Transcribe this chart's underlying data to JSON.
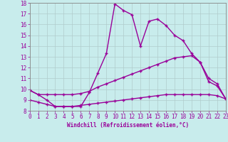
{
  "bg_color": "#c8ecec",
  "line_color": "#990099",
  "grid_color": "#b0cccc",
  "xlim": [
    0,
    23
  ],
  "ylim": [
    8,
    18
  ],
  "xticks": [
    0,
    1,
    2,
    3,
    4,
    5,
    6,
    7,
    8,
    9,
    10,
    11,
    12,
    13,
    14,
    15,
    16,
    17,
    18,
    19,
    20,
    21,
    22,
    23
  ],
  "yticks": [
    8,
    9,
    10,
    11,
    12,
    13,
    14,
    15,
    16,
    17,
    18
  ],
  "xlabel": "Windchill (Refroidissement éolien,°C)",
  "line1_x": [
    0,
    1,
    2,
    3,
    4,
    5,
    6,
    7,
    8,
    9,
    10,
    11,
    12,
    13,
    14,
    15,
    16,
    17,
    18,
    19,
    20,
    21,
    22,
    23
  ],
  "line1_y": [
    9.9,
    9.5,
    9.0,
    8.4,
    8.4,
    8.4,
    8.4,
    9.7,
    11.5,
    13.3,
    17.9,
    17.3,
    16.9,
    14.0,
    16.3,
    16.5,
    15.9,
    15.0,
    14.5,
    13.3,
    12.5,
    10.7,
    10.3,
    9.1
  ],
  "line2_x": [
    0,
    1,
    2,
    3,
    4,
    5,
    6,
    7,
    8,
    9,
    10,
    11,
    12,
    13,
    14,
    15,
    16,
    17,
    18,
    19,
    20,
    21,
    22,
    23
  ],
  "line2_y": [
    9.9,
    9.5,
    9.5,
    9.5,
    9.5,
    9.5,
    9.6,
    9.8,
    10.2,
    10.5,
    10.8,
    11.1,
    11.4,
    11.7,
    12.0,
    12.3,
    12.6,
    12.9,
    13.0,
    13.1,
    12.5,
    11.0,
    10.5,
    9.1
  ],
  "line3_x": [
    0,
    1,
    2,
    3,
    4,
    5,
    6,
    7,
    8,
    9,
    10,
    11,
    12,
    13,
    14,
    15,
    16,
    17,
    18,
    19,
    20,
    21,
    22,
    23
  ],
  "line3_y": [
    9.0,
    8.8,
    8.6,
    8.4,
    8.4,
    8.4,
    8.5,
    8.6,
    8.7,
    8.8,
    8.9,
    9.0,
    9.1,
    9.2,
    9.3,
    9.4,
    9.5,
    9.5,
    9.5,
    9.5,
    9.5,
    9.5,
    9.4,
    9.1
  ],
  "tick_labelsize": 5.5,
  "xlabel_fontsize": 5.5
}
